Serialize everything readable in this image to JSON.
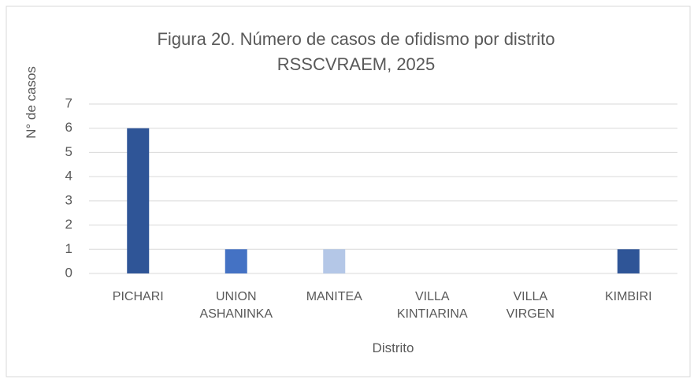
{
  "chart_data": {
    "type": "bar",
    "title": "Figura 20. Número de casos de ofidismo por distrito RSSCVRAEM, 2025",
    "x_label": "Distrito",
    "y_label": "N° de casos",
    "categories": [
      "PICHARI",
      "UNION ASHANINKA",
      "MANITEA",
      "VILLA KINTIARINA",
      "VILLA VIRGEN",
      "KIMBIRI"
    ],
    "values": [
      6,
      1,
      1,
      0,
      0,
      1
    ],
    "colors": [
      "#2f5597",
      "#4472c4",
      "#b4c7e7",
      "#2f5597",
      "#4472c4",
      "#2f5597"
    ],
    "ylim": [
      0,
      7
    ],
    "yticks": [
      0,
      1,
      2,
      3,
      4,
      5,
      6,
      7
    ],
    "grid": true
  }
}
